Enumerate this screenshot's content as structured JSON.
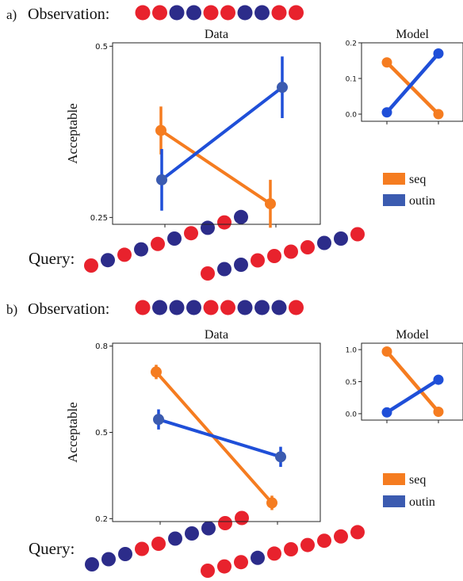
{
  "colors": {
    "red": "#e8222d",
    "navy": "#2c2c8a",
    "orange": "#f57c20",
    "blue": "#1f4fd8",
    "legend_blue": "#3b5bb0"
  },
  "panels": [
    {
      "label": "a)",
      "observation_label": "Observation:",
      "observation_sequence": [
        "red",
        "red",
        "navy",
        "navy",
        "red",
        "red",
        "navy",
        "navy",
        "red",
        "red"
      ],
      "query_label": "Query:",
      "query_sequences": [
        [
          "red",
          "navy",
          "red",
          "navy",
          "red",
          "navy",
          "red",
          "navy",
          "red",
          "navy"
        ],
        [
          "red",
          "navy",
          "navy",
          "red",
          "red",
          "red",
          "red",
          "navy",
          "navy",
          "red"
        ]
      ],
      "legend": {
        "items": [
          {
            "label": "seq",
            "color": "orange"
          },
          {
            "label": "outin",
            "color": "legend_blue"
          }
        ]
      }
    },
    {
      "label": "b)",
      "observation_label": "Observation:",
      "observation_sequence": [
        "red",
        "navy",
        "navy",
        "navy",
        "red",
        "red",
        "navy",
        "navy",
        "navy",
        "red"
      ],
      "query_label": "Query:",
      "query_sequences": [
        [
          "navy",
          "navy",
          "navy",
          "red",
          "red",
          "navy",
          "navy",
          "navy",
          "red",
          "red"
        ],
        [
          "red",
          "red",
          "red",
          "navy",
          "red",
          "red",
          "red",
          "red",
          "red",
          "red"
        ]
      ],
      "legend": {
        "items": [
          {
            "label": "seq",
            "color": "orange"
          },
          {
            "label": "outin",
            "color": "legend_blue"
          }
        ]
      }
    }
  ],
  "chart_data": [
    {
      "panel": "a",
      "title": "Data",
      "type": "line",
      "ylabel": "Acceptable",
      "ylim": [
        0.24,
        0.505
      ],
      "yticks": [
        "0.5",
        "0.25"
      ],
      "ytick_values": [
        0.5,
        0.25
      ],
      "series": [
        {
          "name": "seq",
          "color": "orange",
          "values": [
            0.377,
            0.27
          ],
          "err": [
            0.035,
            0.035
          ]
        },
        {
          "name": "outin",
          "color": "blue",
          "values": [
            0.305,
            0.44
          ],
          "err": [
            0.045,
            0.045
          ]
        }
      ]
    },
    {
      "panel": "a",
      "title": "Model",
      "type": "line",
      "ylim": [
        -0.02,
        0.2
      ],
      "yticks": [
        "0.2",
        "0.1",
        "0.0"
      ],
      "ytick_values": [
        0.2,
        0.1,
        0.0
      ],
      "series": [
        {
          "name": "seq",
          "color": "orange",
          "values": [
            0.145,
            0.0
          ]
        },
        {
          "name": "outin",
          "color": "blue",
          "values": [
            0.005,
            0.17
          ]
        }
      ]
    },
    {
      "panel": "b",
      "title": "Data",
      "type": "line",
      "ylabel": "Acceptable",
      "ylim": [
        0.19,
        0.81
      ],
      "yticks": [
        "0.8",
        "0.5",
        "0.2"
      ],
      "ytick_values": [
        0.8,
        0.5,
        0.2
      ],
      "series": [
        {
          "name": "seq",
          "color": "orange",
          "values": [
            0.71,
            0.255
          ],
          "err": [
            0.025,
            0.025
          ]
        },
        {
          "name": "outin",
          "color": "blue",
          "values": [
            0.545,
            0.415
          ],
          "err": [
            0.035,
            0.035
          ]
        }
      ]
    },
    {
      "panel": "b",
      "title": "Model",
      "type": "line",
      "ylim": [
        -0.1,
        1.1
      ],
      "yticks": [
        "1.0",
        "0.5",
        "0.0"
      ],
      "ytick_values": [
        1.0,
        0.5,
        0.0
      ],
      "series": [
        {
          "name": "seq",
          "color": "orange",
          "values": [
            0.97,
            0.03
          ]
        },
        {
          "name": "outin",
          "color": "blue",
          "values": [
            0.02,
            0.53
          ]
        }
      ]
    }
  ]
}
